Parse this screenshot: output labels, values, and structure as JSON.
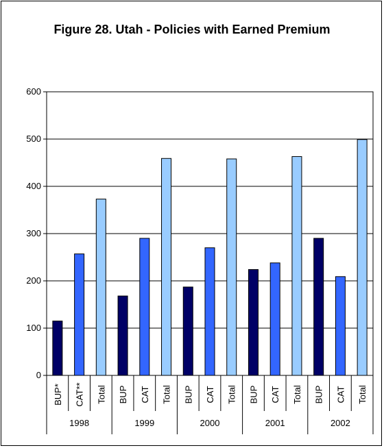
{
  "chart_data": {
    "type": "bar",
    "title": "Figure 28. Utah - Policies with Earned Premium",
    "xlabel": "",
    "ylabel": "",
    "ylim": [
      0,
      600
    ],
    "yticks": [
      0,
      100,
      200,
      300,
      400,
      500,
      600
    ],
    "grid": true,
    "legend": "none",
    "groups": [
      {
        "year": "1998",
        "bars": [
          {
            "label": "BUP*",
            "value": 115,
            "color": "#000066"
          },
          {
            "label": "CAT**",
            "value": 257,
            "color": "#3366ff"
          },
          {
            "label": "Total",
            "value": 373,
            "color": "#99ccff"
          }
        ]
      },
      {
        "year": "1999",
        "bars": [
          {
            "label": "BUP",
            "value": 168,
            "color": "#000066"
          },
          {
            "label": "CAT",
            "value": 290,
            "color": "#3366ff"
          },
          {
            "label": "Total",
            "value": 459,
            "color": "#99ccff"
          }
        ]
      },
      {
        "year": "2000",
        "bars": [
          {
            "label": "BUP",
            "value": 187,
            "color": "#000066"
          },
          {
            "label": "CAT",
            "value": 270,
            "color": "#3366ff"
          },
          {
            "label": "Total",
            "value": 458,
            "color": "#99ccff"
          }
        ]
      },
      {
        "year": "2001",
        "bars": [
          {
            "label": "BUP",
            "value": 224,
            "color": "#000066"
          },
          {
            "label": "CAT",
            "value": 238,
            "color": "#3366ff"
          },
          {
            "label": "Total",
            "value": 463,
            "color": "#99ccff"
          }
        ]
      },
      {
        "year": "2002",
        "bars": [
          {
            "label": "BUP",
            "value": 290,
            "color": "#000066"
          },
          {
            "label": "CAT",
            "value": 209,
            "color": "#3366ff"
          },
          {
            "label": "Total",
            "value": 499,
            "color": "#99ccff"
          }
        ]
      }
    ]
  }
}
